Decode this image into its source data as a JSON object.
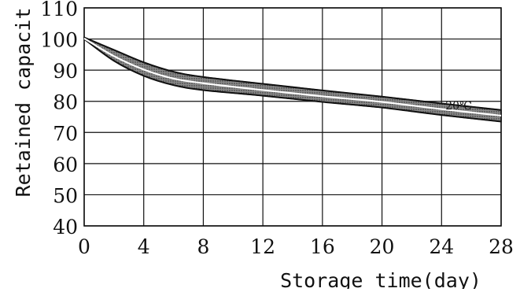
{
  "chart_data": {
    "type": "area",
    "title": "",
    "xlabel": "Storage time(day)",
    "ylabel": "Retained capacit",
    "xlim": [
      0,
      28
    ],
    "ylim": [
      40,
      110
    ],
    "x_ticks": [
      0,
      4,
      8,
      12,
      16,
      20,
      24,
      28
    ],
    "y_ticks": [
      40,
      50,
      60,
      70,
      80,
      90,
      100,
      110
    ],
    "grid": true,
    "annotation": "20℃",
    "series": [
      {
        "role": "upper",
        "x": [
          0,
          2,
          4,
          6,
          8,
          12,
          16,
          20,
          24,
          28
        ],
        "values": [
          100.5,
          96.5,
          92.5,
          89.5,
          87.8,
          85.6,
          83.5,
          81.5,
          79.3,
          77.2
        ]
      },
      {
        "role": "center",
        "x": [
          0,
          2,
          4,
          6,
          8,
          12,
          16,
          20,
          24,
          28
        ],
        "values": [
          100.2,
          94.5,
          90.2,
          87.3,
          85.8,
          83.6,
          81.6,
          79.8,
          77.5,
          75.4
        ]
      },
      {
        "role": "lower",
        "x": [
          0,
          2,
          4,
          6,
          8,
          12,
          16,
          20,
          24,
          28
        ],
        "values": [
          100,
          93.0,
          88.2,
          85.2,
          83.6,
          81.8,
          79.8,
          78.0,
          75.6,
          73.5
        ]
      }
    ],
    "colors": {
      "band_fill": "#6f6f6f",
      "band_edge": "#111111",
      "center_line": "#ffffff",
      "grid": "#111111",
      "text": "#111111"
    }
  }
}
